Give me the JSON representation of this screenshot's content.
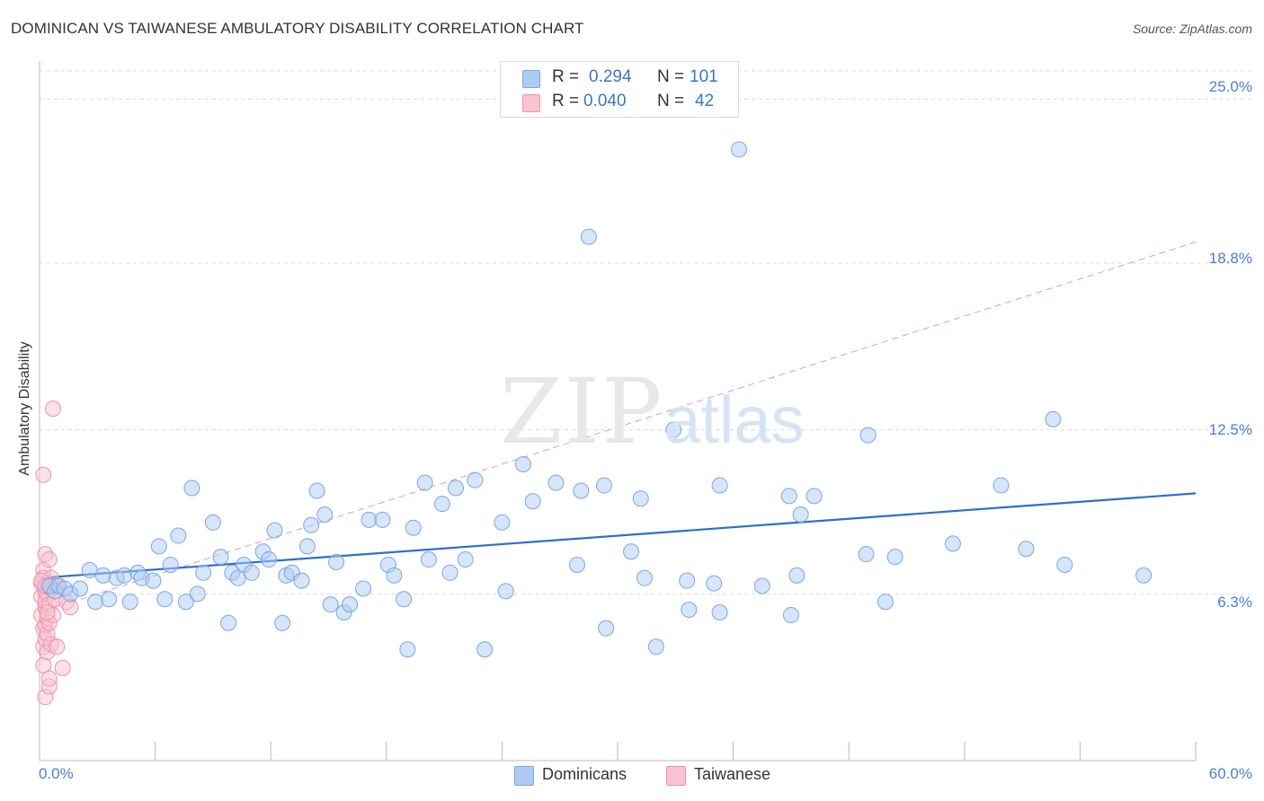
{
  "title": "DOMINICAN VS TAIWANESE AMBULATORY DISABILITY CORRELATION CHART",
  "source": "Source: ZipAtlas.com",
  "watermark": {
    "main": "ZIP",
    "sub": "atlas"
  },
  "stats": [
    {
      "r_label": "R =",
      "r_value": "0.294",
      "n_label": "N =",
      "n_value": "101",
      "color": "#aecbf2"
    },
    {
      "r_label": "R =",
      "r_value": "0.040",
      "n_label": "N =",
      "n_value": "42",
      "color": "#f8c4d2"
    }
  ],
  "legend": [
    {
      "label": "Dominicans",
      "color": "#aecbf2"
    },
    {
      "label": "Taiwanese",
      "color": "#f8c4d2"
    }
  ],
  "chart_data": {
    "type": "scatter",
    "title": "DOMINICAN VS TAIWANESE AMBULATORY DISABILITY CORRELATION CHART",
    "xlabel": "",
    "ylabel": "Ambulatory Disability",
    "xlim": [
      0,
      60
    ],
    "ylim": [
      0,
      26.2
    ],
    "x_tick_labels": [
      "0.0%",
      "60.0%"
    ],
    "y_ticks": [
      6.3,
      12.5,
      18.8,
      25.0
    ],
    "y_tick_labels": [
      "6.3%",
      "12.5%",
      "18.8%",
      "25.0%"
    ],
    "grid": true,
    "legend_position": "bottom-center",
    "series": [
      {
        "name": "Dominicans",
        "color": "#7aa6e6",
        "trend": {
          "x": [
            0,
            60
          ],
          "y": [
            6.9,
            10.1
          ],
          "style": "solid",
          "color": "#2f6fcc"
        },
        "points": [
          [
            0.5,
            6.6
          ],
          [
            0.8,
            6.4
          ],
          [
            1.0,
            6.6
          ],
          [
            1.3,
            6.5
          ],
          [
            1.6,
            6.3
          ],
          [
            2.1,
            6.5
          ],
          [
            2.6,
            7.2
          ],
          [
            2.9,
            6.0
          ],
          [
            3.3,
            7.0
          ],
          [
            3.6,
            6.1
          ],
          [
            4.0,
            6.9
          ],
          [
            4.4,
            7.0
          ],
          [
            4.7,
            6.0
          ],
          [
            5.1,
            7.1
          ],
          [
            5.3,
            6.9
          ],
          [
            5.9,
            6.8
          ],
          [
            6.2,
            8.1
          ],
          [
            6.5,
            6.1
          ],
          [
            6.8,
            7.4
          ],
          [
            7.2,
            8.5
          ],
          [
            7.6,
            6.0
          ],
          [
            7.9,
            10.3
          ],
          [
            8.2,
            6.3
          ],
          [
            8.5,
            7.1
          ],
          [
            9.0,
            9.0
          ],
          [
            9.4,
            7.7
          ],
          [
            9.8,
            5.2
          ],
          [
            10.0,
            7.1
          ],
          [
            10.3,
            6.9
          ],
          [
            10.6,
            7.4
          ],
          [
            11.0,
            7.1
          ],
          [
            11.6,
            7.9
          ],
          [
            11.9,
            7.6
          ],
          [
            12.2,
            8.7
          ],
          [
            12.6,
            5.2
          ],
          [
            12.8,
            7.0
          ],
          [
            13.1,
            7.1
          ],
          [
            13.6,
            6.8
          ],
          [
            13.9,
            8.1
          ],
          [
            14.1,
            8.9
          ],
          [
            14.4,
            10.2
          ],
          [
            14.8,
            9.3
          ],
          [
            15.1,
            5.9
          ],
          [
            15.4,
            7.5
          ],
          [
            15.8,
            5.6
          ],
          [
            16.1,
            5.9
          ],
          [
            16.8,
            6.5
          ],
          [
            17.1,
            9.1
          ],
          [
            17.8,
            9.1
          ],
          [
            18.1,
            7.4
          ],
          [
            18.4,
            7.0
          ],
          [
            18.9,
            6.1
          ],
          [
            19.1,
            4.2
          ],
          [
            19.4,
            8.8
          ],
          [
            20.0,
            10.5
          ],
          [
            20.2,
            7.6
          ],
          [
            20.9,
            9.7
          ],
          [
            21.3,
            7.1
          ],
          [
            21.6,
            10.3
          ],
          [
            22.1,
            7.6
          ],
          [
            22.6,
            10.6
          ],
          [
            23.1,
            4.2
          ],
          [
            24.0,
            9.0
          ],
          [
            24.2,
            6.4
          ],
          [
            25.1,
            11.2
          ],
          [
            25.6,
            9.8
          ],
          [
            26.8,
            10.5
          ],
          [
            27.9,
            7.4
          ],
          [
            28.1,
            10.2
          ],
          [
            28.5,
            19.8
          ],
          [
            29.3,
            10.4
          ],
          [
            29.4,
            5.0
          ],
          [
            30.7,
            7.9
          ],
          [
            31.2,
            9.9
          ],
          [
            31.4,
            6.9
          ],
          [
            32.0,
            4.3
          ],
          [
            32.9,
            12.5
          ],
          [
            33.6,
            6.8
          ],
          [
            33.7,
            5.7
          ],
          [
            35.0,
            6.7
          ],
          [
            35.3,
            5.6
          ],
          [
            35.3,
            10.4
          ],
          [
            36.3,
            23.1
          ],
          [
            37.5,
            6.6
          ],
          [
            38.9,
            10.0
          ],
          [
            39.0,
            5.5
          ],
          [
            39.3,
            7.0
          ],
          [
            39.5,
            9.3
          ],
          [
            40.2,
            10.0
          ],
          [
            42.9,
            7.8
          ],
          [
            43.0,
            12.3
          ],
          [
            43.9,
            6.0
          ],
          [
            44.4,
            7.7
          ],
          [
            47.4,
            8.2
          ],
          [
            49.9,
            10.4
          ],
          [
            51.2,
            8.0
          ],
          [
            52.6,
            12.9
          ],
          [
            53.2,
            7.4
          ],
          [
            57.3,
            7.0
          ]
        ]
      },
      {
        "name": "Taiwanese",
        "color": "#f090ad",
        "trend": {
          "x": [
            0,
            60
          ],
          "y": [
            5.6,
            19.6
          ],
          "style": "dashed",
          "color": "#e896ae"
        },
        "points": [
          [
            0.1,
            6.7
          ],
          [
            0.1,
            6.2
          ],
          [
            0.1,
            5.5
          ],
          [
            0.2,
            7.2
          ],
          [
            0.2,
            5.0
          ],
          [
            0.2,
            4.3
          ],
          [
            0.2,
            6.9
          ],
          [
            0.2,
            3.6
          ],
          [
            0.3,
            6.4
          ],
          [
            0.3,
            5.8
          ],
          [
            0.3,
            5.1
          ],
          [
            0.3,
            4.6
          ],
          [
            0.3,
            7.8
          ],
          [
            0.3,
            2.4
          ],
          [
            0.3,
            6.0
          ],
          [
            0.4,
            5.4
          ],
          [
            0.4,
            4.8
          ],
          [
            0.4,
            6.6
          ],
          [
            0.4,
            4.1
          ],
          [
            0.4,
            6.3
          ],
          [
            0.5,
            5.2
          ],
          [
            0.5,
            7.6
          ],
          [
            0.5,
            2.8
          ],
          [
            0.5,
            5.9
          ],
          [
            0.5,
            3.1
          ],
          [
            0.6,
            6.9
          ],
          [
            0.6,
            4.4
          ],
          [
            0.6,
            6.5
          ],
          [
            0.7,
            5.5
          ],
          [
            0.7,
            13.3
          ],
          [
            0.8,
            6.1
          ],
          [
            0.8,
            6.4
          ],
          [
            0.9,
            4.3
          ],
          [
            1.2,
            3.5
          ],
          [
            1.4,
            6.0
          ],
          [
            1.6,
            5.8
          ],
          [
            0.2,
            10.8
          ],
          [
            0.1,
            6.8
          ],
          [
            0.3,
            6.6
          ],
          [
            0.6,
            6.6
          ],
          [
            0.9,
            6.6
          ],
          [
            0.4,
            5.6
          ]
        ]
      }
    ]
  }
}
